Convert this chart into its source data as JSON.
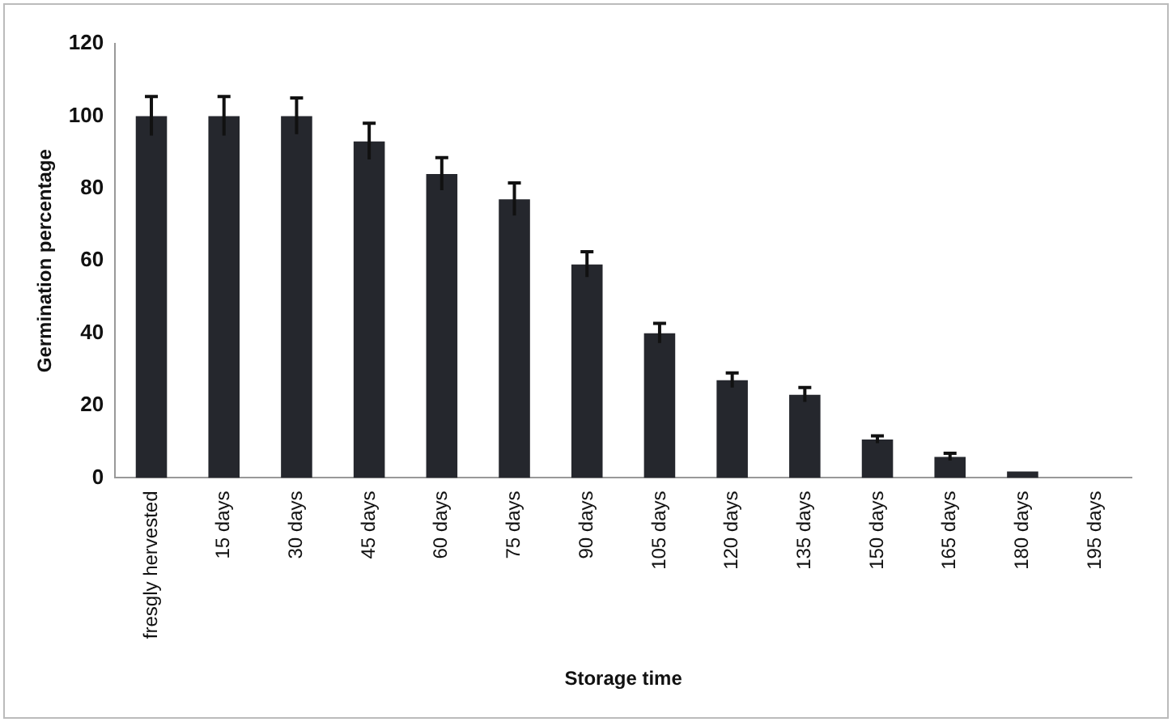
{
  "chart_data": {
    "type": "bar",
    "xlabel": "Storage time",
    "ylabel": "Germination percentage",
    "categories": [
      "fresgly hervested",
      "15 days",
      "30 days",
      "45 days",
      "60 days",
      "75 days",
      "90 days",
      "105 days",
      "120 days",
      "135 days",
      "150 days",
      "165 days",
      "180 days",
      "195 days"
    ],
    "values": [
      100,
      100,
      100,
      93,
      84,
      77,
      59,
      40,
      27,
      23,
      10.6,
      5.8,
      1.8,
      0
    ],
    "errors": [
      5.4,
      5.4,
      5,
      5,
      4.5,
      4.5,
      3.5,
      2.7,
      2,
      2,
      1,
      1,
      null,
      null
    ],
    "color": "#25272d",
    "ylim": [
      0,
      120
    ],
    "yticks": [
      0,
      20,
      40,
      60,
      80,
      100,
      120
    ],
    "grid": false,
    "legend": false
  }
}
